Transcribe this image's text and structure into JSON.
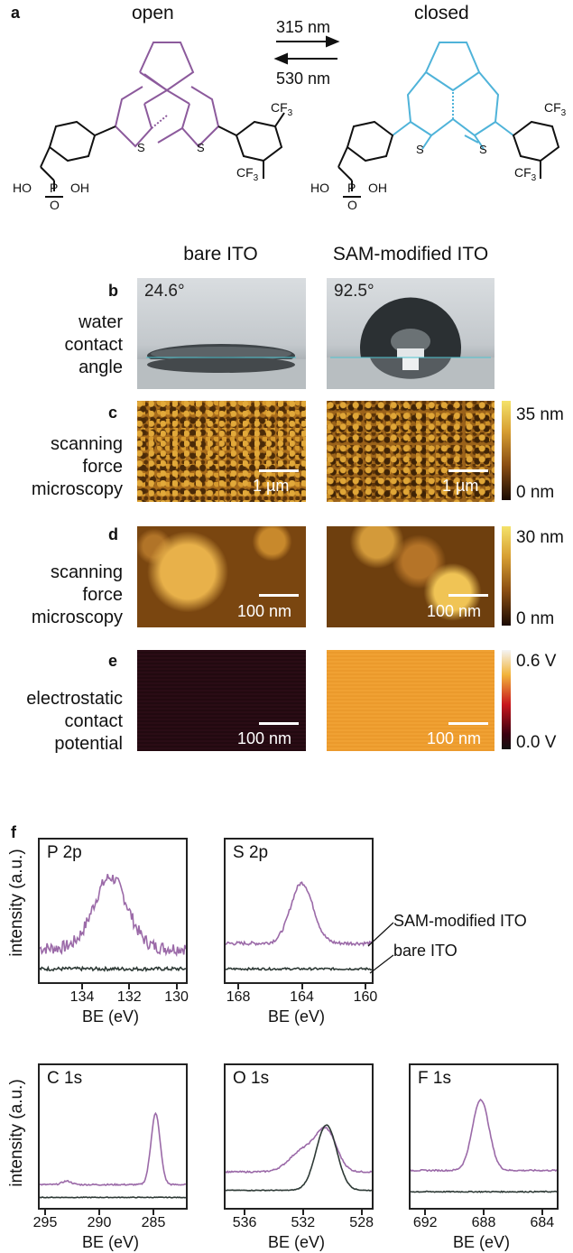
{
  "panel_a": {
    "letter": "a",
    "open_label": "open",
    "closed_label": "closed",
    "forward_wavelength": "315 nm",
    "back_wavelength": "530 nm",
    "chem": {
      "s": "S",
      "cf3": "CF",
      "sub3": "3",
      "ho": "HO",
      "p": "P",
      "oh": "OH",
      "o": "O"
    },
    "colors": {
      "open": "#8c5a9c",
      "closed": "#4fb3d9"
    }
  },
  "columns": {
    "left": "bare ITO",
    "right": "SAM-modified ITO"
  },
  "panel_b": {
    "letter": "b",
    "label_lines": [
      "water",
      "contact",
      "angle"
    ],
    "left_angle": "24.6°",
    "right_angle": "92.5°"
  },
  "panel_c": {
    "letter": "c",
    "label_lines": [
      "scanning",
      "force",
      "microscopy"
    ],
    "scale": "1 µm",
    "cbar_top": "35 nm",
    "cbar_bottom": "0 nm"
  },
  "panel_d": {
    "letter": "d",
    "label_lines": [
      "scanning",
      "force",
      "microscopy"
    ],
    "scale": "100 nm",
    "cbar_top": "30 nm",
    "cbar_bottom": "0 nm"
  },
  "panel_e": {
    "letter": "e",
    "label_lines": [
      "electrostatic",
      "contact",
      "potential"
    ],
    "scale": "100 nm",
    "cbar_top": "0.6 V",
    "cbar_bottom": "0.0 V"
  },
  "panel_f": {
    "letter": "f",
    "ylabel": "intensity (a.u.)",
    "xlabel": "BE (eV)",
    "legend_sam": "SAM-modified ITO",
    "legend_bare": "bare ITO",
    "colors": {
      "sam": "#9b6aa8",
      "bare": "#2e3a36"
    }
  },
  "chart_data": [
    {
      "type": "line",
      "title": "P 2p",
      "xlabel": "BE (eV)",
      "ylabel": "intensity (a.u.)",
      "xlim": [
        135.8,
        129.6
      ],
      "ticks": [
        "134",
        "132",
        "130"
      ],
      "series": [
        {
          "name": "SAM-modified ITO",
          "peaks": [
            [
              132.8,
              1.0,
              1.0
            ]
          ],
          "baseline": 0.35,
          "noise": 0.18
        },
        {
          "name": "bare ITO",
          "peaks": [],
          "baseline": 0.06,
          "noise": 0.05
        }
      ]
    },
    {
      "type": "line",
      "title": "S 2p",
      "xlabel": "BE (eV)",
      "ylabel": "",
      "xlim": [
        168.8,
        159.6
      ],
      "ticks": [
        "168",
        "164",
        "160"
      ],
      "series": [
        {
          "name": "SAM-modified ITO",
          "peaks": [
            [
              164.0,
              0.85,
              1.0
            ]
          ],
          "baseline": 0.42,
          "noise": 0.05
        },
        {
          "name": "bare ITO",
          "peaks": [],
          "baseline": 0.06,
          "noise": 0.03
        }
      ]
    },
    {
      "type": "line",
      "title": "C 1s",
      "xlabel": "BE (eV)",
      "ylabel": "intensity (a.u.)",
      "xlim": [
        295.5,
        282.0
      ],
      "ticks": [
        "295",
        "290",
        "285"
      ],
      "series": [
        {
          "name": "SAM-modified ITO",
          "peaks": [
            [
              284.8,
              1.0,
              0.6
            ],
            [
              293.0,
              0.05,
              0.6
            ]
          ],
          "baseline": 0.2,
          "noise": 0.02
        },
        {
          "name": "bare ITO",
          "peaks": [],
          "baseline": 0.02,
          "noise": 0.01
        }
      ]
    },
    {
      "type": "line",
      "title": "O 1s",
      "xlabel": "BE (eV)",
      "ylabel": "",
      "xlim": [
        537.3,
        527.3
      ],
      "ticks": [
        "536",
        "532",
        "528"
      ],
      "series": [
        {
          "name": "SAM-modified ITO",
          "peaks": [
            [
              530.4,
              0.55,
              1.0
            ],
            [
              532.0,
              0.3,
              1.3
            ]
          ],
          "baseline": 0.38,
          "noise": 0.02
        },
        {
          "name": "bare ITO",
          "peaks": [
            [
              530.4,
              0.92,
              1.0
            ]
          ],
          "baseline": 0.12,
          "noise": 0.01
        }
      ]
    },
    {
      "type": "line",
      "title": "F 1s",
      "xlabel": "BE (eV)",
      "ylabel": "",
      "xlim": [
        693.0,
        683.0
      ],
      "ticks": [
        "692",
        "688",
        "684"
      ],
      "series": [
        {
          "name": "SAM-modified ITO",
          "peaks": [
            [
              688.2,
              1.0,
              0.8
            ]
          ],
          "baseline": 0.4,
          "noise": 0.02
        },
        {
          "name": "bare ITO",
          "peaks": [],
          "baseline": 0.1,
          "noise": 0.015
        }
      ]
    }
  ]
}
